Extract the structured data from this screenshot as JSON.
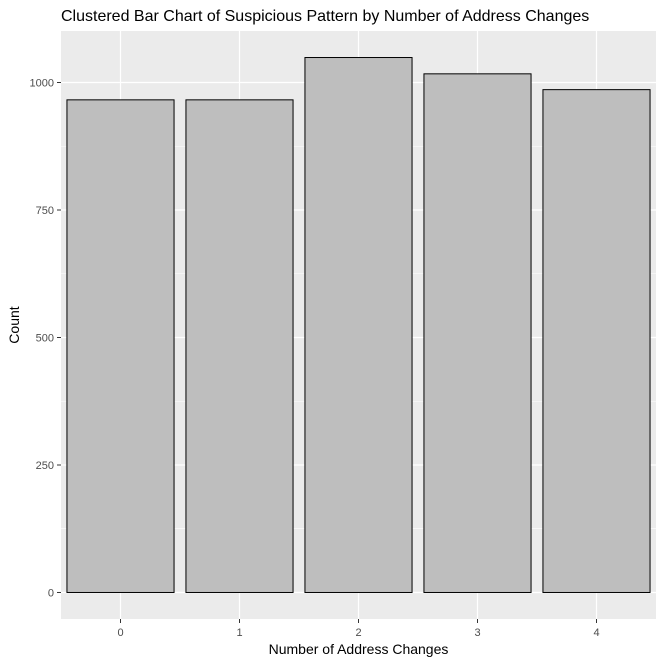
{
  "colors": {
    "panel_background": "#ebebeb",
    "grid_major": "#ffffff",
    "bar_fill": "#bebebe",
    "bar_outline": "#000000",
    "tick_text": "#4d4d4d",
    "tick_mark": "#333333"
  },
  "chart_data": {
    "type": "bar",
    "title": "Clustered Bar Chart of Suspicious Pattern by Number of Address Changes",
    "xlabel": "Number of Address Changes",
    "ylabel": "Count",
    "categories": [
      "0",
      "1",
      "2",
      "3",
      "4"
    ],
    "values": [
      966,
      966,
      1049,
      1017,
      986
    ],
    "yticks": [
      "0",
      "250",
      "500",
      "750",
      "1000"
    ],
    "ylim": [
      -52,
      1101
    ],
    "grid": true,
    "legend": "none"
  }
}
